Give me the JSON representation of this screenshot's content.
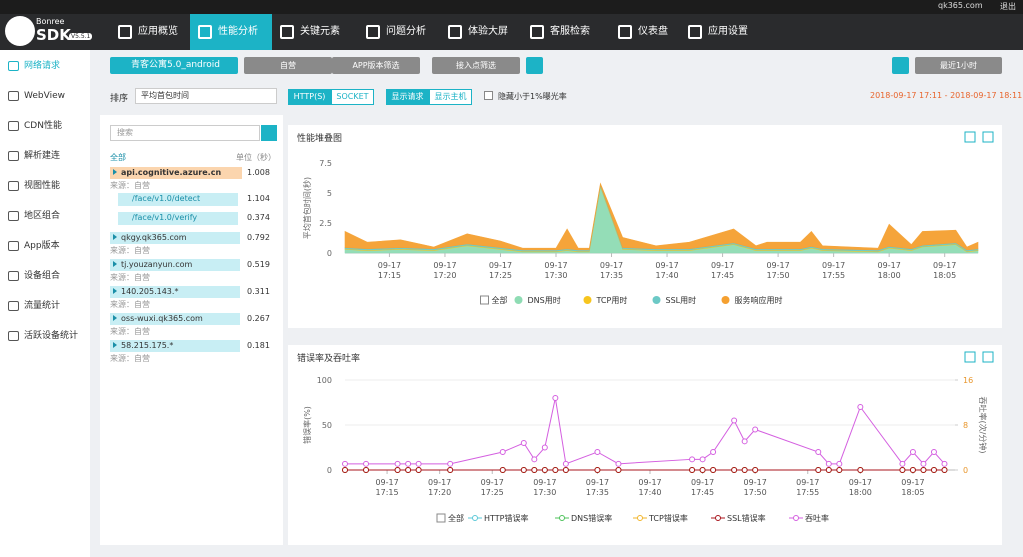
{
  "nav": {
    "brand": "Bonree",
    "product": "SDK",
    "version": "V5.5.1",
    "tabs": [
      "应用概览",
      "性能分析",
      "关键元素",
      "问题分析",
      "体验大屏",
      "客服检索",
      "仪表盘",
      "应用设置"
    ],
    "user": "qk365.com",
    "logout": "退出"
  },
  "sidebar": {
    "items": [
      "网络请求",
      "WebView",
      "CDN性能",
      "解析建连",
      "视图性能",
      "地区组合",
      "App版本",
      "设备组合",
      "流量统计",
      "活跃设备统计"
    ]
  },
  "toolbar": {
    "app": "青客公寓5.0_android",
    "buttons": [
      "自营",
      "APP版本筛选",
      "接入点筛选"
    ],
    "range": "最近1小时"
  },
  "filters": {
    "sort_label": "排序",
    "sort": "平均首包时间",
    "protocols": [
      "HTTP(S)",
      "SOCKET"
    ],
    "views": [
      "显示请求",
      "显示主机"
    ],
    "hide": "隐藏小于1%曝光率",
    "date_range": "2018-09-17 17:11 - 2018-09-17 18:11"
  },
  "list": {
    "search": "搜索",
    "all": "全部",
    "unit": "单位（秒）",
    "items": [
      {
        "name": "api.cognitive.azure.cn",
        "value": 1.008,
        "source": "来源：自营",
        "children": [
          {
            "name": "/face/v1.0/detect",
            "value": 1.104
          },
          {
            "name": "/face/v1.0/verify",
            "value": 0.374
          }
        ]
      },
      {
        "name": "qkgy.qk365.com",
        "value": 0.792,
        "source": "来源：自营",
        "children": []
      },
      {
        "name": "tj.youzanyun.com",
        "value": 0.519,
        "source": "来源：自营",
        "children": []
      },
      {
        "name": "140.205.143.*",
        "value": 0.311,
        "source": "来源：自营",
        "children": []
      },
      {
        "name": "oss-wuxi.qk365.com",
        "value": 0.267,
        "source": "来源：自营",
        "children": []
      },
      {
        "name": "58.215.175.*",
        "value": 0.181,
        "source": "来源：自营",
        "children": []
      }
    ]
  },
  "chart_data": [
    {
      "type": "area",
      "stacked": true,
      "title": "性能堆叠图",
      "y_label": "平均首包时间(秒)",
      "legend_all": "全部",
      "x": [
        "09-17 17:11",
        "09-17 17:13",
        "09-17 17:16",
        "09-17 17:19",
        "09-17 17:22",
        "09-17 17:25",
        "09-17 17:27",
        "09-17 17:30",
        "09-17 17:31",
        "09-17 17:32",
        "09-17 17:33",
        "09-17 17:34",
        "09-17 17:36",
        "09-17 17:39",
        "09-17 17:42",
        "09-17 17:46",
        "09-17 17:48",
        "09-17 17:49",
        "09-17 17:52",
        "09-17 17:53",
        "09-17 17:54",
        "09-17 17:59",
        "09-17 18:00",
        "09-17 18:02",
        "09-17 18:03",
        "09-17 18:06",
        "09-17 18:07",
        "09-17 18:08"
      ],
      "xlim": [
        "09-17 17:11",
        "09-17 18:08"
      ],
      "xticks": [
        "09-17 17:15",
        "09-17 17:20",
        "09-17 17:25",
        "09-17 17:30",
        "09-17 17:35",
        "09-17 17:40",
        "09-17 17:45",
        "09-17 17:50",
        "09-17 17:55",
        "09-17 18:00",
        "09-17 18:05"
      ],
      "ylim": [
        0,
        7.5
      ],
      "yticks": [
        0,
        2.5,
        5,
        7.5
      ],
      "series": [
        {
          "name": "DNS用时",
          "color": "#8fdcb4",
          "values": [
            0.3,
            0.2,
            0.3,
            0.2,
            0.6,
            0.3,
            0.1,
            0.1,
            0.2,
            0.1,
            0.1,
            5.5,
            0.3,
            0.2,
            0.2,
            0.7,
            0.2,
            0.2,
            0.2,
            0.4,
            0.2,
            0.1,
            0.4,
            0.2,
            0.5,
            0.7,
            0.1,
            0.2
          ]
        },
        {
          "name": "TCP用时",
          "color": "#f7c51e",
          "values": [
            0.05,
            0.05,
            0.05,
            0.05,
            0.05,
            0.05,
            0.05,
            0.05,
            0.05,
            0.05,
            0.05,
            0.05,
            0.05,
            0.05,
            0.05,
            0.05,
            0.05,
            0.05,
            0.05,
            0.05,
            0.05,
            0.05,
            0.05,
            0.05,
            0.05,
            0.05,
            0.05,
            0.05
          ]
        },
        {
          "name": "SSL用时",
          "color": "#6cc9c6",
          "values": [
            0.1,
            0.1,
            0.1,
            0.1,
            0.1,
            0.1,
            0.1,
            0.1,
            0.1,
            0.1,
            0.1,
            0.1,
            0.1,
            0.1,
            0.1,
            0.1,
            0.1,
            0.1,
            0.1,
            0.1,
            0.1,
            0.1,
            0.1,
            0.1,
            0.1,
            0.1,
            0.1,
            0.1
          ]
        },
        {
          "name": "服务响应用时",
          "color": "#f5a030",
          "values": [
            1.35,
            0.55,
            0.65,
            0.15,
            0.85,
            0.55,
            0.15,
            0.15,
            1.65,
            0.15,
            0.15,
            0.15,
            0.85,
            0.25,
            0.55,
            1.15,
            0.25,
            0.55,
            0.55,
            1.25,
            0.25,
            0.15,
            1.85,
            0.35,
            1.15,
            1.05,
            0.25,
            0.55
          ]
        }
      ]
    },
    {
      "type": "line",
      "title": "错误率及吞吐率",
      "y_label": "错误率(%)",
      "y2_label": "吞吐率(次/分钟)",
      "legend_all": "全部",
      "x": [
        "09-17 17:11",
        "09-17 17:13",
        "09-17 17:16",
        "09-17 17:17",
        "09-17 17:18",
        "09-17 17:21",
        "09-17 17:26",
        "09-17 17:28",
        "09-17 17:29",
        "09-17 17:30",
        "09-17 17:31",
        "09-17 17:32",
        "09-17 17:35",
        "09-17 17:37",
        "09-17 17:44",
        "09-17 17:45",
        "09-17 17:46",
        "09-17 17:48",
        "09-17 17:49",
        "09-17 17:50",
        "09-17 17:56",
        "09-17 17:57",
        "09-17 17:58",
        "09-17 18:00",
        "09-17 18:04",
        "09-17 18:05",
        "09-17 18:06",
        "09-17 18:07",
        "09-17 18:08"
      ],
      "xlim": [
        "09-17 17:11",
        "09-17 18:09"
      ],
      "xticks": [
        "09-17 17:15",
        "09-17 17:20",
        "09-17 17:25",
        "09-17 17:30",
        "09-17 17:35",
        "09-17 17:40",
        "09-17 17:45",
        "09-17 17:50",
        "09-17 17:55",
        "09-17 18:00",
        "09-17 18:05"
      ],
      "ylim": [
        0,
        100
      ],
      "yticks": [
        0,
        50,
        100
      ],
      "y2lim": [
        0,
        16
      ],
      "y2ticks": [
        0,
        8,
        16
      ],
      "series": [
        {
          "name": "HTTP错误率",
          "color": "#5bc8d8",
          "values": [
            0,
            0,
            0,
            0,
            0,
            0,
            0,
            0,
            0,
            0,
            0,
            0,
            0,
            0,
            0,
            0,
            0,
            0,
            0,
            0,
            0,
            0,
            0,
            0,
            0,
            0,
            0,
            0,
            0
          ]
        },
        {
          "name": "DNS错误率",
          "color": "#4cc25a",
          "values": [
            0,
            0,
            0,
            0,
            0,
            0,
            0,
            0,
            0,
            0,
            0,
            0,
            0,
            0,
            0,
            0,
            0,
            0,
            0,
            0,
            0,
            0,
            0,
            0,
            0,
            0,
            0,
            0,
            0
          ]
        },
        {
          "name": "TCP错误率",
          "color": "#f2b52a",
          "values": [
            0,
            0,
            0,
            0,
            0,
            0,
            0,
            0,
            0,
            0,
            0,
            0,
            0,
            0,
            0,
            0,
            0,
            0,
            0,
            0,
            0,
            0,
            0,
            0,
            0,
            0,
            0,
            0,
            0
          ]
        },
        {
          "name": "SSL错误率",
          "color": "#a8141c",
          "values": [
            0,
            0,
            0,
            0,
            0,
            0,
            0,
            0,
            0,
            0,
            0,
            0,
            0,
            0,
            0,
            0,
            0,
            0,
            0,
            0,
            0,
            0,
            0,
            0,
            0,
            0,
            0,
            0,
            0
          ]
        },
        {
          "name": "吞吐率",
          "color": "#d45fe0",
          "axis": "y2",
          "values": [
            1.1,
            1.1,
            1.1,
            1.1,
            1.1,
            1.1,
            3.2,
            4.8,
            1.9,
            4,
            12.8,
            1.1,
            3.2,
            1.1,
            1.9,
            1.9,
            3.2,
            8.8,
            5.1,
            7.2,
            3.2,
            1.1,
            1.1,
            11.2,
            1.1,
            3.2,
            1.1,
            3.2,
            1.1
          ]
        }
      ]
    }
  ]
}
